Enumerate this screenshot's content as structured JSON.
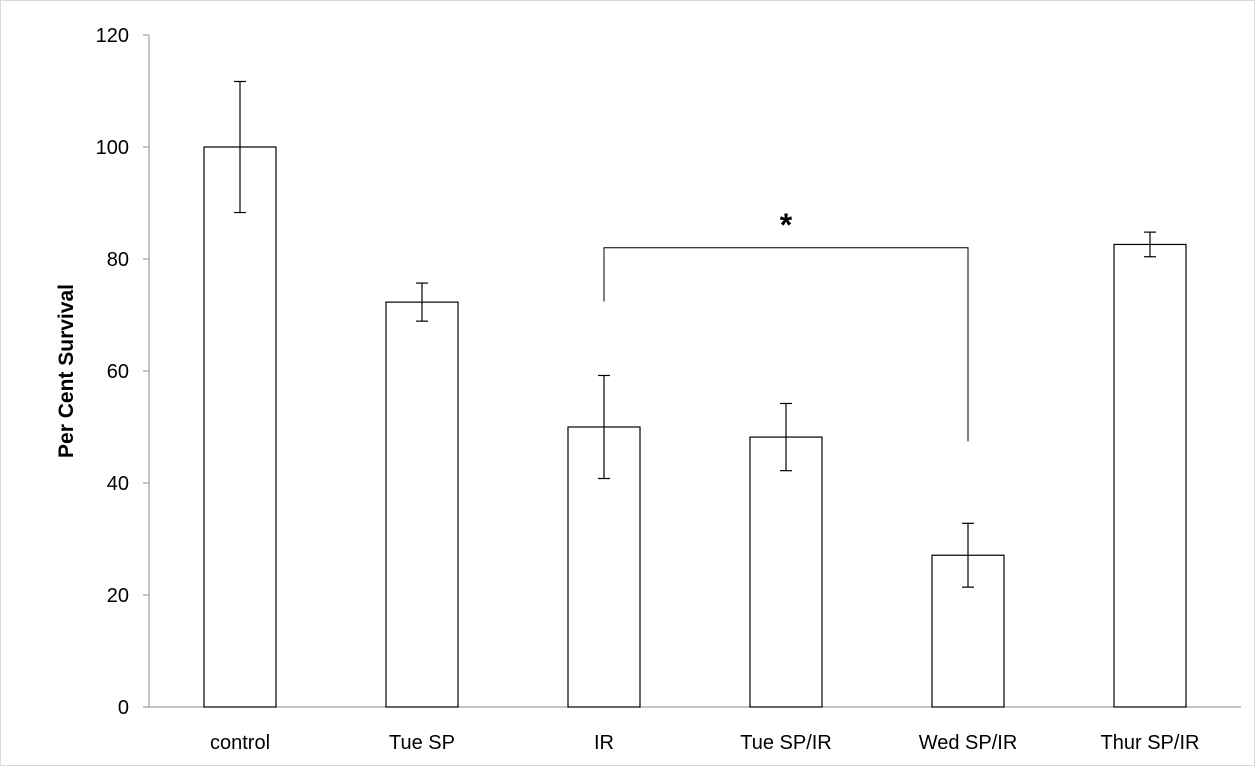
{
  "chart_data": {
    "type": "bar",
    "title": "",
    "xlabel": "",
    "ylabel": "Per Cent Survival",
    "ylim": [
      0,
      120
    ],
    "yticks": [
      0,
      20,
      40,
      60,
      80,
      100,
      120
    ],
    "categories": [
      "control",
      "Tue SP",
      "IR",
      "Tue SP/IR",
      "Wed SP/IR",
      "Thur SP/IR"
    ],
    "values": [
      100,
      72.3,
      50.0,
      48.2,
      27.1,
      82.6
    ],
    "errors": [
      11.7,
      3.4,
      9.2,
      6.0,
      5.7,
      2.2
    ],
    "bar_fill": "#ffffff",
    "bar_stroke": "#000000",
    "axis_color": "#8c8c8c",
    "grid": false,
    "legend": "none",
    "annotations": [
      {
        "type": "significance-bracket",
        "from": "IR",
        "to": "Wed SP/IR",
        "level": 82,
        "label": "*"
      }
    ]
  }
}
